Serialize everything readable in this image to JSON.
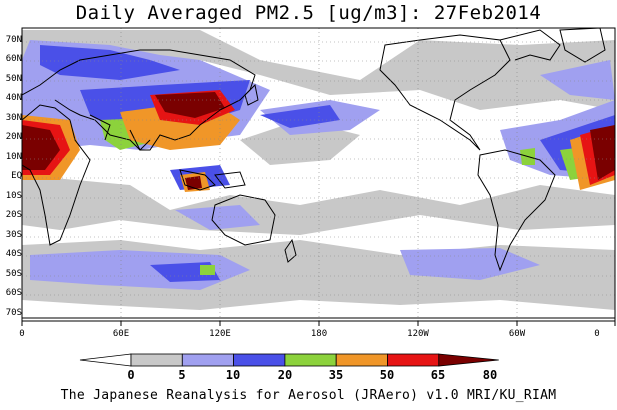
{
  "title": "Daily Averaged PM2.5 [ug/m3]: 27Feb2014",
  "footer": "The Japanese Reanalysis for Aerosol (JRAero) v1.0 MRI/KU_RIAM",
  "lat_labels": [
    "70N",
    "60N",
    "50N",
    "40N",
    "30N",
    "20N",
    "10N",
    "EQ",
    "10S",
    "20S",
    "30S",
    "40S",
    "50S",
    "60S",
    "70S"
  ],
  "lon_labels": [
    "0",
    "60E",
    "120E",
    "180",
    "120W",
    "60W",
    "0"
  ],
  "legend": {
    "thresholds": [
      "0",
      "5",
      "10",
      "20",
      "35",
      "50",
      "65",
      "80"
    ],
    "colors": [
      "#ffffff",
      "#c8c8c8",
      "#a0a0f0",
      "#4a50e8",
      "#8cd23c",
      "#f09628",
      "#e61414",
      "#7a0000"
    ]
  }
}
